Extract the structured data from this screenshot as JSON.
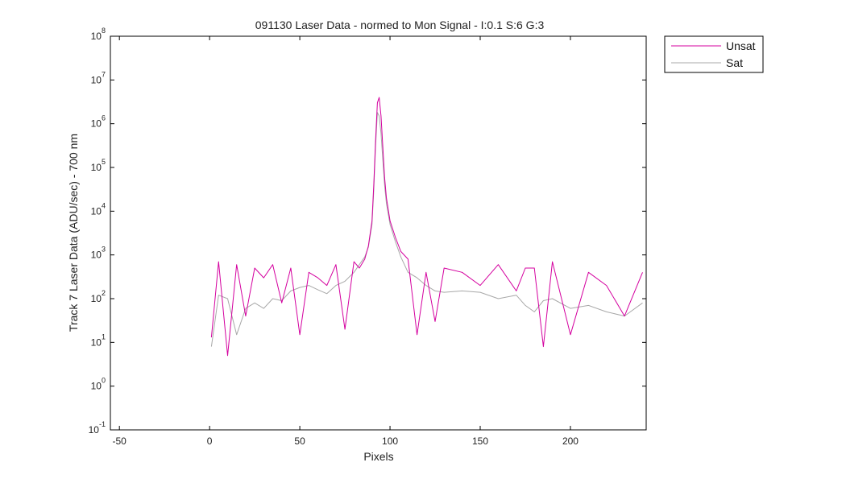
{
  "chart_data": {
    "type": "line",
    "title": "091130 Laser Data - normed to Mon Signal -   I:0.1  S:6  G:3",
    "xlabel": "Pixels",
    "ylabel": "Track 7 Laser Data (ADU/sec) - 700 nm",
    "xlim": [
      -55,
      242
    ],
    "ylim_log10": [
      -1,
      8
    ],
    "yscale": "log",
    "grid": false,
    "legend_position": "outside-top-right",
    "x_ticks": [
      -50,
      0,
      50,
      100,
      150,
      200
    ],
    "y_ticks": [
      {
        "base": "10",
        "exp": "8"
      },
      {
        "base": "10",
        "exp": "7"
      },
      {
        "base": "10",
        "exp": "6"
      },
      {
        "base": "10",
        "exp": "5"
      },
      {
        "base": "10",
        "exp": "4"
      },
      {
        "base": "10",
        "exp": "3"
      },
      {
        "base": "10",
        "exp": "2"
      },
      {
        "base": "10",
        "exp": "1"
      },
      {
        "base": "10",
        "exp": "0"
      },
      {
        "base": "10",
        "exp": "-1"
      }
    ],
    "x": [
      1,
      5,
      10,
      15,
      20,
      25,
      30,
      35,
      40,
      45,
      50,
      55,
      60,
      65,
      70,
      75,
      80,
      83,
      86,
      88,
      90,
      91,
      92,
      93,
      94,
      95,
      96,
      97,
      98,
      100,
      103,
      106,
      110,
      115,
      120,
      125,
      130,
      140,
      150,
      160,
      170,
      175,
      180,
      185,
      190,
      200,
      210,
      220,
      230,
      240
    ],
    "series": [
      {
        "name": "Unsat",
        "color": "#d4009f",
        "values": [
          13,
          700,
          5,
          600,
          40,
          500,
          300,
          600,
          80,
          500,
          15,
          400,
          300,
          200,
          600,
          20,
          700,
          500,
          800,
          1600,
          6000,
          40000,
          400000,
          3000000,
          4000000,
          1500000,
          300000,
          60000,
          20000,
          6000,
          2500,
          1200,
          800,
          15,
          400,
          30,
          500,
          400,
          200,
          600,
          150,
          500,
          500,
          8,
          700,
          15,
          400,
          200,
          40,
          400
        ]
      },
      {
        "name": "Sat",
        "color": "#a8a8a8",
        "values": [
          8,
          120,
          100,
          15,
          60,
          80,
          60,
          100,
          90,
          150,
          180,
          200,
          160,
          130,
          200,
          250,
          400,
          600,
          900,
          1500,
          5000,
          30000,
          300000,
          1800000,
          1500000,
          600000,
          150000,
          40000,
          15000,
          5000,
          2000,
          900,
          400,
          300,
          200,
          150,
          140,
          150,
          140,
          100,
          120,
          70,
          50,
          90,
          100,
          60,
          70,
          50,
          40,
          80
        ]
      }
    ]
  }
}
